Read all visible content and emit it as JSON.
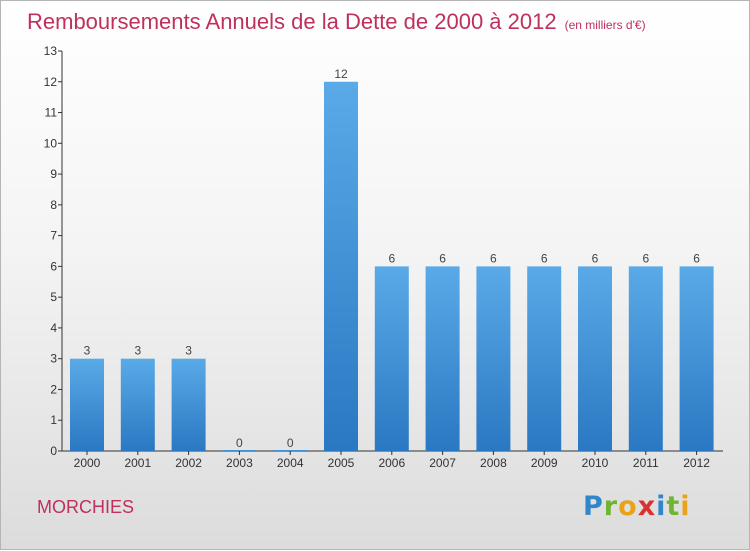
{
  "chart_data": {
    "type": "bar",
    "title": "Remboursements Annuels de la Dette de 2000 à 2012",
    "subtitle": "(en milliers d'€)",
    "categories": [
      "2000",
      "2001",
      "2002",
      "2003",
      "2004",
      "2005",
      "2006",
      "2007",
      "2008",
      "2009",
      "2010",
      "2011",
      "2012"
    ],
    "values": [
      3,
      3,
      3,
      0,
      0,
      12,
      6,
      6,
      6,
      6,
      6,
      6,
      6
    ],
    "data_labels": [
      "3",
      "3",
      "3",
      "0",
      "0",
      "12",
      "6",
      "6",
      "6",
      "6",
      "6",
      "6",
      "6"
    ],
    "xlabel": "",
    "ylabel": "",
    "ylim": [
      0,
      13
    ],
    "yticks": [
      0,
      1,
      2,
      3,
      4,
      5,
      6,
      7,
      8,
      9,
      10,
      11,
      12,
      13
    ],
    "grid": false,
    "bar_color": "#3a8fd6"
  },
  "footer": {
    "commune": "MORCHIES",
    "logo_letters": [
      {
        "ch": "P",
        "color": "#2f86c9"
      },
      {
        "ch": "r",
        "color": "#6fb530"
      },
      {
        "ch": "o",
        "color": "#e8a21b"
      },
      {
        "ch": "x",
        "color": "#d8312e"
      },
      {
        "ch": "i",
        "color": "#2f86c9"
      },
      {
        "ch": "t",
        "color": "#6fb530"
      },
      {
        "ch": "i",
        "color": "#e8a21b"
      }
    ]
  }
}
